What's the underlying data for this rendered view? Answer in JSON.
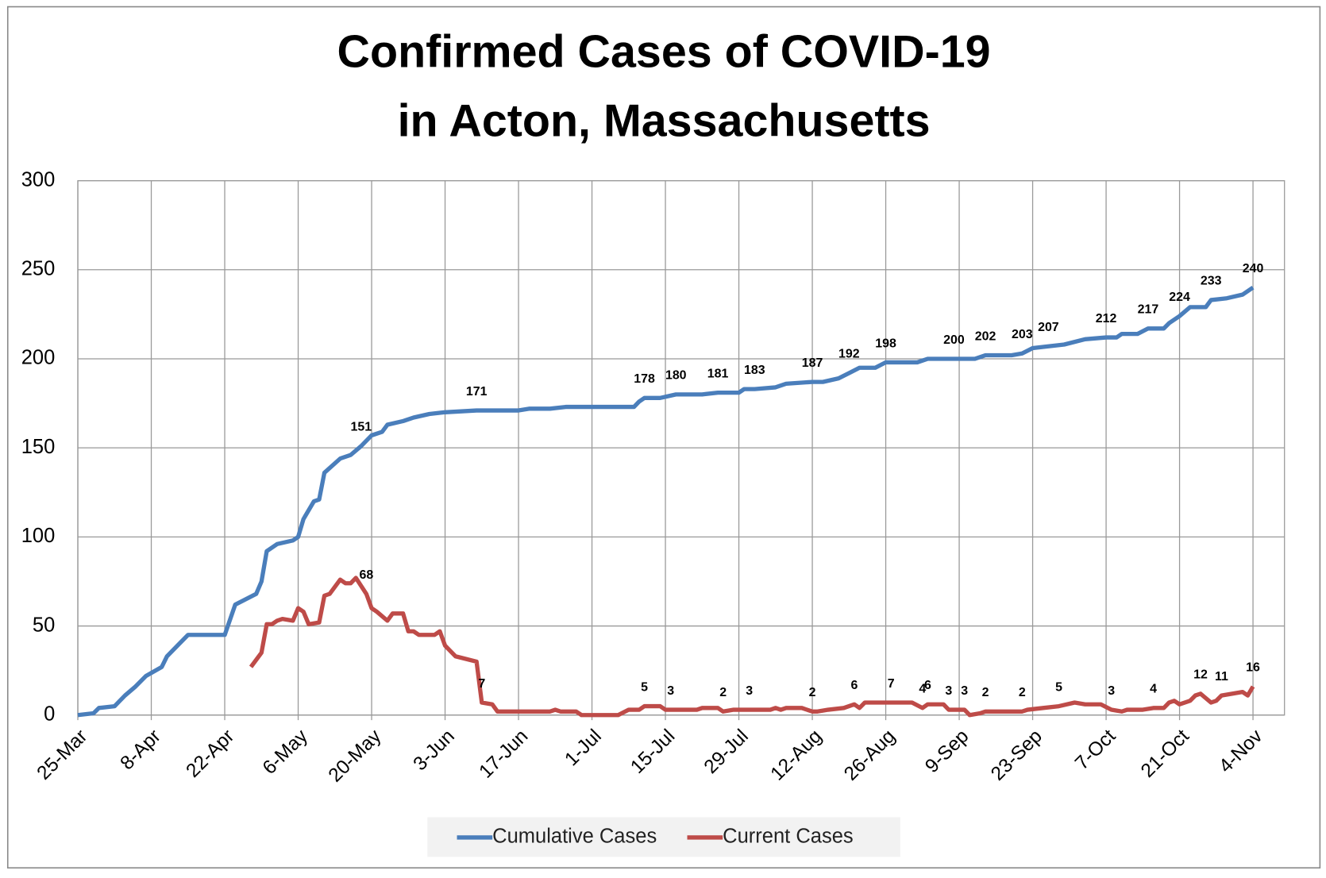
{
  "chart_data": {
    "type": "line",
    "title": [
      "Confirmed Cases of COVID-19",
      "in Acton, Massachusetts"
    ],
    "xlim": [
      0,
      230
    ],
    "xticks": [
      {
        "value": 0,
        "label": "25-Mar"
      },
      {
        "value": 14,
        "label": "8-Apr"
      },
      {
        "value": 28,
        "label": "22-Apr"
      },
      {
        "value": 42,
        "label": "6-May"
      },
      {
        "value": 56,
        "label": "20-May"
      },
      {
        "value": 70,
        "label": "3-Jun"
      },
      {
        "value": 84,
        "label": "17-Jun"
      },
      {
        "value": 98,
        "label": "1-Jul"
      },
      {
        "value": 112,
        "label": "15-Jul"
      },
      {
        "value": 126,
        "label": "29-Jul"
      },
      {
        "value": 140,
        "label": "12-Aug"
      },
      {
        "value": 154,
        "label": "26-Aug"
      },
      {
        "value": 168,
        "label": "9-Sep"
      },
      {
        "value": 182,
        "label": "23-Sep"
      },
      {
        "value": 196,
        "label": "7-Oct"
      },
      {
        "value": 210,
        "label": "21-Oct"
      },
      {
        "value": 224,
        "label": "4-Nov"
      }
    ],
    "ylim": [
      0,
      300
    ],
    "yticks": [
      0,
      50,
      100,
      150,
      200,
      250,
      300
    ],
    "grid": true,
    "legend": "bottom",
    "series": [
      {
        "name": "Cumulative Cases",
        "color": "#4a7ebb",
        "x": [
          0,
          3,
          4,
          7,
          9,
          11,
          13,
          16,
          17,
          19,
          21,
          28,
          30,
          34,
          35,
          36,
          38,
          41,
          42,
          43,
          45,
          46,
          47,
          50,
          52,
          54,
          56,
          58,
          59,
          62,
          64,
          67,
          70,
          76,
          84,
          86,
          90,
          93,
          106,
          107,
          108,
          111,
          114,
          119,
          122,
          126,
          127,
          129,
          133,
          135,
          140,
          142,
          145,
          147,
          149,
          152,
          154,
          160,
          162,
          167,
          171,
          173,
          178,
          180,
          182,
          185,
          188,
          192,
          196,
          198,
          199,
          202,
          204,
          207,
          208,
          210,
          212,
          215,
          216,
          219,
          222,
          224
        ],
        "values": [
          0,
          1,
          4,
          5,
          11,
          16,
          22,
          27,
          33,
          39,
          45,
          45,
          62,
          68,
          75,
          92,
          96,
          98,
          100,
          110,
          120,
          121,
          136,
          144,
          146,
          151,
          157,
          159,
          163,
          165,
          167,
          169,
          170,
          171,
          171,
          172,
          172,
          173,
          173,
          176,
          178,
          178,
          180,
          180,
          181,
          181,
          183,
          183,
          184,
          186,
          187,
          187,
          189,
          192,
          195,
          195,
          198,
          198,
          200,
          200,
          200,
          202,
          202,
          203,
          206,
          207,
          208,
          211,
          212,
          212,
          214,
          214,
          217,
          217,
          220,
          224,
          229,
          229,
          233,
          234,
          236,
          240
        ],
        "value_labels": [
          null,
          null,
          null,
          null,
          null,
          null,
          null,
          null,
          null,
          null,
          null,
          null,
          null,
          null,
          null,
          null,
          null,
          null,
          null,
          null,
          null,
          null,
          null,
          null,
          null,
          "151",
          null,
          null,
          null,
          null,
          null,
          null,
          null,
          "171",
          null,
          null,
          null,
          null,
          null,
          null,
          "178",
          null,
          "180",
          null,
          "181",
          null,
          null,
          "183",
          null,
          null,
          "187",
          null,
          null,
          "192",
          null,
          null,
          "198",
          null,
          null,
          "200",
          null,
          "202",
          null,
          "203",
          null,
          "207",
          null,
          null,
          "212",
          null,
          null,
          null,
          "217",
          null,
          null,
          "224",
          null,
          null,
          "233",
          null,
          null,
          "240"
        ]
      },
      {
        "name": "Current Cases",
        "color": "#be4b48",
        "x": [
          33,
          35,
          36,
          37,
          38,
          39,
          41,
          42,
          43,
          44,
          46,
          47,
          48,
          50,
          51,
          52,
          53,
          55,
          56,
          57,
          59,
          60,
          62,
          63,
          64,
          65,
          68,
          69,
          70,
          72,
          76,
          77,
          79,
          80,
          90,
          91,
          92,
          95,
          96,
          103,
          105,
          107,
          108,
          111,
          112,
          113,
          118,
          119,
          122,
          123,
          125,
          128,
          132,
          133,
          134,
          135,
          138,
          140,
          141,
          143,
          146,
          148,
          149,
          150,
          155,
          157,
          159,
          161,
          162,
          165,
          166,
          169,
          170,
          172,
          173,
          175,
          180,
          181,
          184,
          187,
          190,
          192,
          195,
          197,
          199,
          200,
          203,
          205,
          207,
          208,
          209,
          210,
          212,
          213,
          214,
          216,
          217,
          218,
          220,
          222,
          223,
          224
        ],
        "values": [
          27,
          35,
          51,
          51,
          53,
          54,
          53,
          60,
          58,
          51,
          52,
          67,
          68,
          76,
          74,
          74,
          77,
          68,
          60,
          58,
          53,
          57,
          57,
          47,
          47,
          45,
          45,
          47,
          39,
          33,
          30,
          7,
          6,
          2,
          2,
          3,
          2,
          2,
          0,
          0,
          3,
          3,
          5,
          5,
          3,
          3,
          3,
          4,
          4,
          2,
          3,
          3,
          3,
          4,
          3,
          4,
          4,
          2,
          2,
          3,
          4,
          6,
          4,
          7,
          7,
          7,
          7,
          4,
          6,
          6,
          3,
          3,
          0,
          1,
          2,
          2,
          2,
          3,
          4,
          5,
          7,
          6,
          6,
          3,
          2,
          3,
          3,
          4,
          4,
          7,
          8,
          6,
          8,
          11,
          12,
          7,
          8,
          11,
          12,
          13,
          11,
          16
        ],
        "value_labels": [
          null,
          null,
          null,
          null,
          null,
          null,
          null,
          null,
          null,
          null,
          null,
          null,
          null,
          null,
          null,
          null,
          null,
          "68",
          null,
          null,
          null,
          null,
          null,
          null,
          null,
          null,
          null,
          null,
          null,
          null,
          null,
          "7",
          null,
          null,
          null,
          null,
          null,
          null,
          null,
          null,
          null,
          null,
          "5",
          null,
          null,
          "3",
          null,
          null,
          null,
          "2",
          null,
          "3",
          null,
          null,
          null,
          null,
          null,
          "2",
          null,
          null,
          null,
          "6",
          null,
          null,
          "7",
          null,
          null,
          "4",
          "6",
          null,
          "3",
          "3",
          null,
          null,
          "2",
          null,
          "2",
          null,
          null,
          "5",
          null,
          null,
          null,
          "3",
          null,
          null,
          null,
          "4",
          null,
          null,
          null,
          null,
          null,
          null,
          "12",
          null,
          null,
          "11",
          null,
          null,
          null,
          "16"
        ]
      }
    ]
  }
}
